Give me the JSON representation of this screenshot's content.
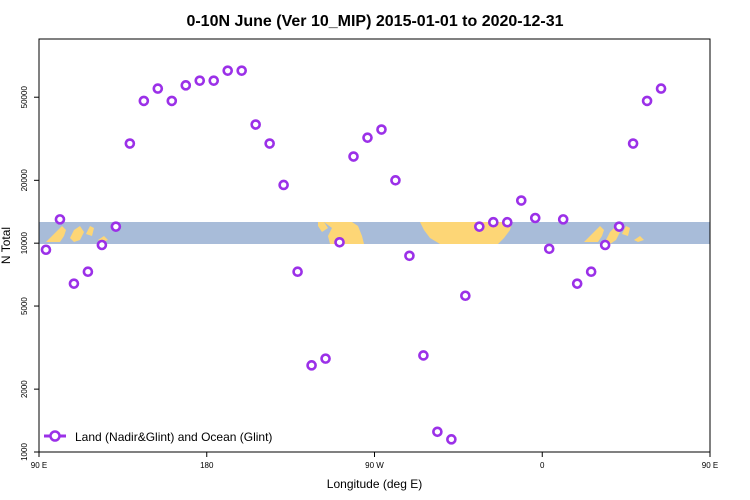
{
  "chart_data": {
    "type": "scatter",
    "title": "0-10N June (Ver 10_MIP)   2015-01-01 to 2020-12-31",
    "xlabel": "Longitude (deg E)",
    "ylabel": "N Total",
    "y_scale": "log",
    "xlim": [
      90,
      450
    ],
    "ylim": [
      1000,
      95000
    ],
    "x_ticks": [
      {
        "value": 90,
        "label": "90 E"
      },
      {
        "value": 180,
        "label": "180"
      },
      {
        "value": 270,
        "label": "90 W"
      },
      {
        "value": 360,
        "label": "0"
      },
      {
        "value": 450,
        "label": "90 E"
      },
      {
        "value": 540,
        "label": "180"
      }
    ],
    "y_ticks": [
      {
        "value": 1000,
        "label": "1000"
      },
      {
        "value": 2000,
        "label": "2000"
      },
      {
        "value": 5000,
        "label": "5000"
      },
      {
        "value": 10000,
        "label": "10000"
      },
      {
        "value": 20000,
        "label": "20000"
      },
      {
        "value": 50000,
        "label": "50000"
      }
    ],
    "grid": false,
    "legend_position": "bottom-left",
    "series": [
      {
        "name": "Land (Nadir&Glint) and Ocean (Glint)",
        "color": "#9b30e8",
        "marker": "open-circle",
        "points": [
          [
            93.75,
            9300
          ],
          [
            101.25,
            13000
          ],
          [
            108.75,
            6400
          ],
          [
            116.25,
            7300
          ],
          [
            123.75,
            9800
          ],
          [
            131.25,
            12000
          ],
          [
            138.75,
            30000
          ],
          [
            146.25,
            48000
          ],
          [
            153.75,
            55000
          ],
          [
            161.25,
            48000
          ],
          [
            168.75,
            57000
          ],
          [
            176.25,
            60000
          ],
          [
            183.75,
            60000
          ],
          [
            191.25,
            67000
          ],
          [
            198.75,
            67000
          ],
          [
            206.25,
            37000
          ],
          [
            213.75,
            30000
          ],
          [
            221.25,
            19000
          ],
          [
            228.75,
            7300
          ],
          [
            236.25,
            2600
          ],
          [
            243.75,
            2800
          ],
          [
            251.25,
            10100
          ],
          [
            258.75,
            26000
          ],
          [
            266.25,
            32000
          ],
          [
            273.75,
            35000
          ],
          [
            281.25,
            20000
          ],
          [
            288.75,
            8700
          ],
          [
            296.25,
            2900
          ],
          [
            303.75,
            1250
          ],
          [
            311.25,
            1150
          ],
          [
            318.75,
            5600
          ],
          [
            326.25,
            12000
          ],
          [
            333.75,
            12600
          ],
          [
            341.25,
            12600
          ],
          [
            348.75,
            16000
          ],
          [
            356.25,
            13200
          ],
          [
            363.75,
            9400
          ],
          [
            371.25,
            13000
          ],
          [
            378.75,
            6400
          ],
          [
            386.25,
            7300
          ],
          [
            393.75,
            9800
          ],
          [
            401.25,
            12000
          ],
          [
            408.75,
            30000
          ],
          [
            416.25,
            48000
          ],
          [
            423.75,
            55000
          ]
        ]
      }
    ],
    "background_map": "world land/ocean strip, 0-10N",
    "colors": {
      "ocean": "#a8bcd9",
      "land": "#fdd676",
      "marker": "#9b30e8"
    }
  }
}
